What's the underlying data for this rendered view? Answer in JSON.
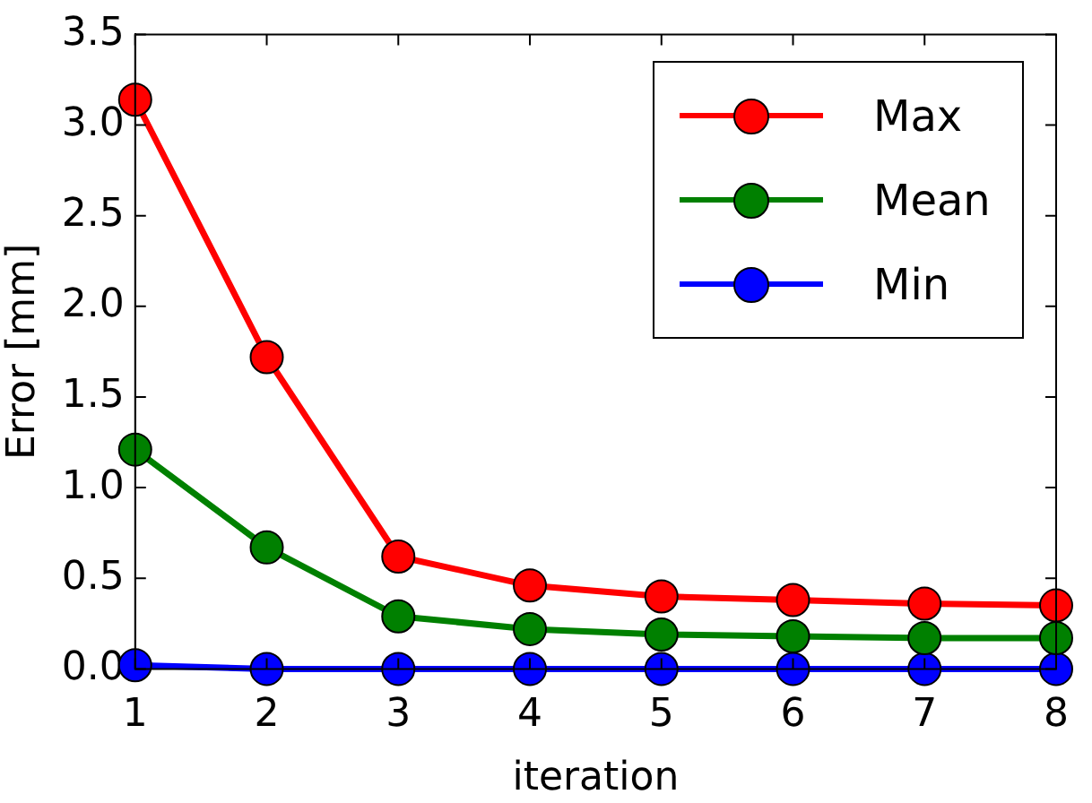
{
  "chart_data": {
    "type": "line",
    "xlabel": "iteration",
    "ylabel": "Error [mm]",
    "x": [
      1,
      2,
      3,
      4,
      5,
      6,
      7,
      8
    ],
    "series": [
      {
        "name": "Max",
        "color": "#ff0000",
        "values": [
          3.14,
          1.72,
          0.62,
          0.46,
          0.4,
          0.38,
          0.36,
          0.35
        ]
      },
      {
        "name": "Mean",
        "color": "#008000",
        "values": [
          1.21,
          0.67,
          0.29,
          0.22,
          0.19,
          0.18,
          0.17,
          0.17
        ]
      },
      {
        "name": "Min",
        "color": "#0000ff",
        "values": [
          0.02,
          0.0,
          0.0,
          0.0,
          0.0,
          0.0,
          0.0,
          0.0
        ]
      }
    ],
    "xlim": [
      1,
      8
    ],
    "xticks": [
      1,
      2,
      3,
      4,
      5,
      6,
      7,
      8
    ],
    "ylim": [
      0,
      3.5
    ],
    "yticks": [
      {
        "value": 0,
        "label": "0.0"
      },
      {
        "value": 0.5,
        "label": "0.5"
      },
      {
        "value": 1,
        "label": "1.0"
      },
      {
        "value": 1.5,
        "label": "1.5"
      },
      {
        "value": 2,
        "label": "2.0"
      },
      {
        "value": 2.5,
        "label": "2.5"
      },
      {
        "value": 3,
        "label": "3.0"
      },
      {
        "value": 3.5,
        "label": "3.5"
      }
    ],
    "grid": false,
    "legend": "top right",
    "marker": "circle",
    "line_style": "solid"
  }
}
